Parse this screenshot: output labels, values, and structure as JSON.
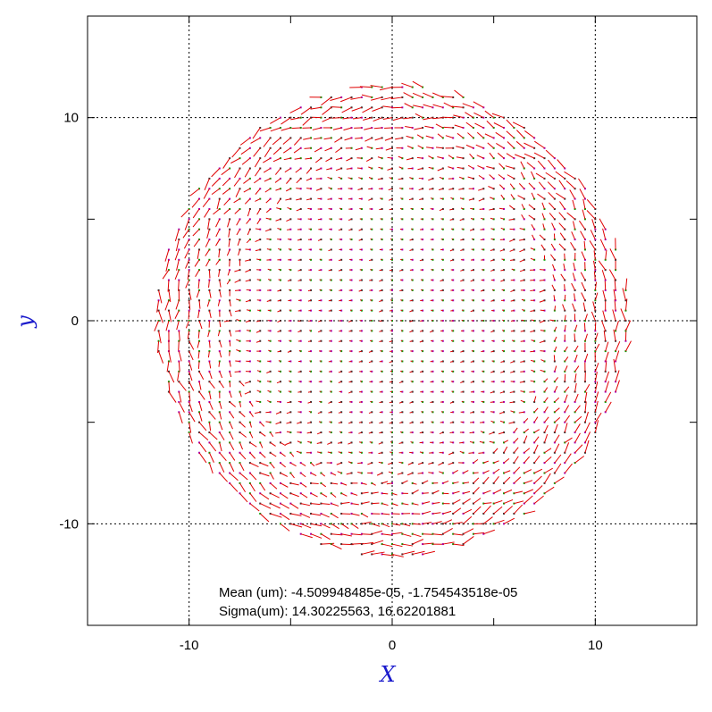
{
  "chart_data": {
    "type": "scatter",
    "subtype": "vector-field",
    "xlabel": "X",
    "ylabel": "y",
    "xlim": [
      -15,
      15
    ],
    "ylim": [
      -15,
      15
    ],
    "xticks": [
      -10,
      0,
      10
    ],
    "yticks": [
      -10,
      0,
      10
    ],
    "grid": true,
    "field": {
      "grid_spacing": 0.5,
      "radius": 11.6,
      "description_values": "per-point residual vectors on a 0.5-unit grid inside radius ~11.6"
    },
    "annotations": [
      "Mean (um): -4.509948485e-05, -1.754543518e-05",
      "Sigma(um): 14.30225563, 16.62201881"
    ],
    "colors": {
      "vector": "#e00000",
      "marker_a": "#00a000",
      "marker_b": "#a000c0",
      "marker_c": "#303030",
      "axis_title": "#1a1acc",
      "grid": "#000000"
    }
  }
}
